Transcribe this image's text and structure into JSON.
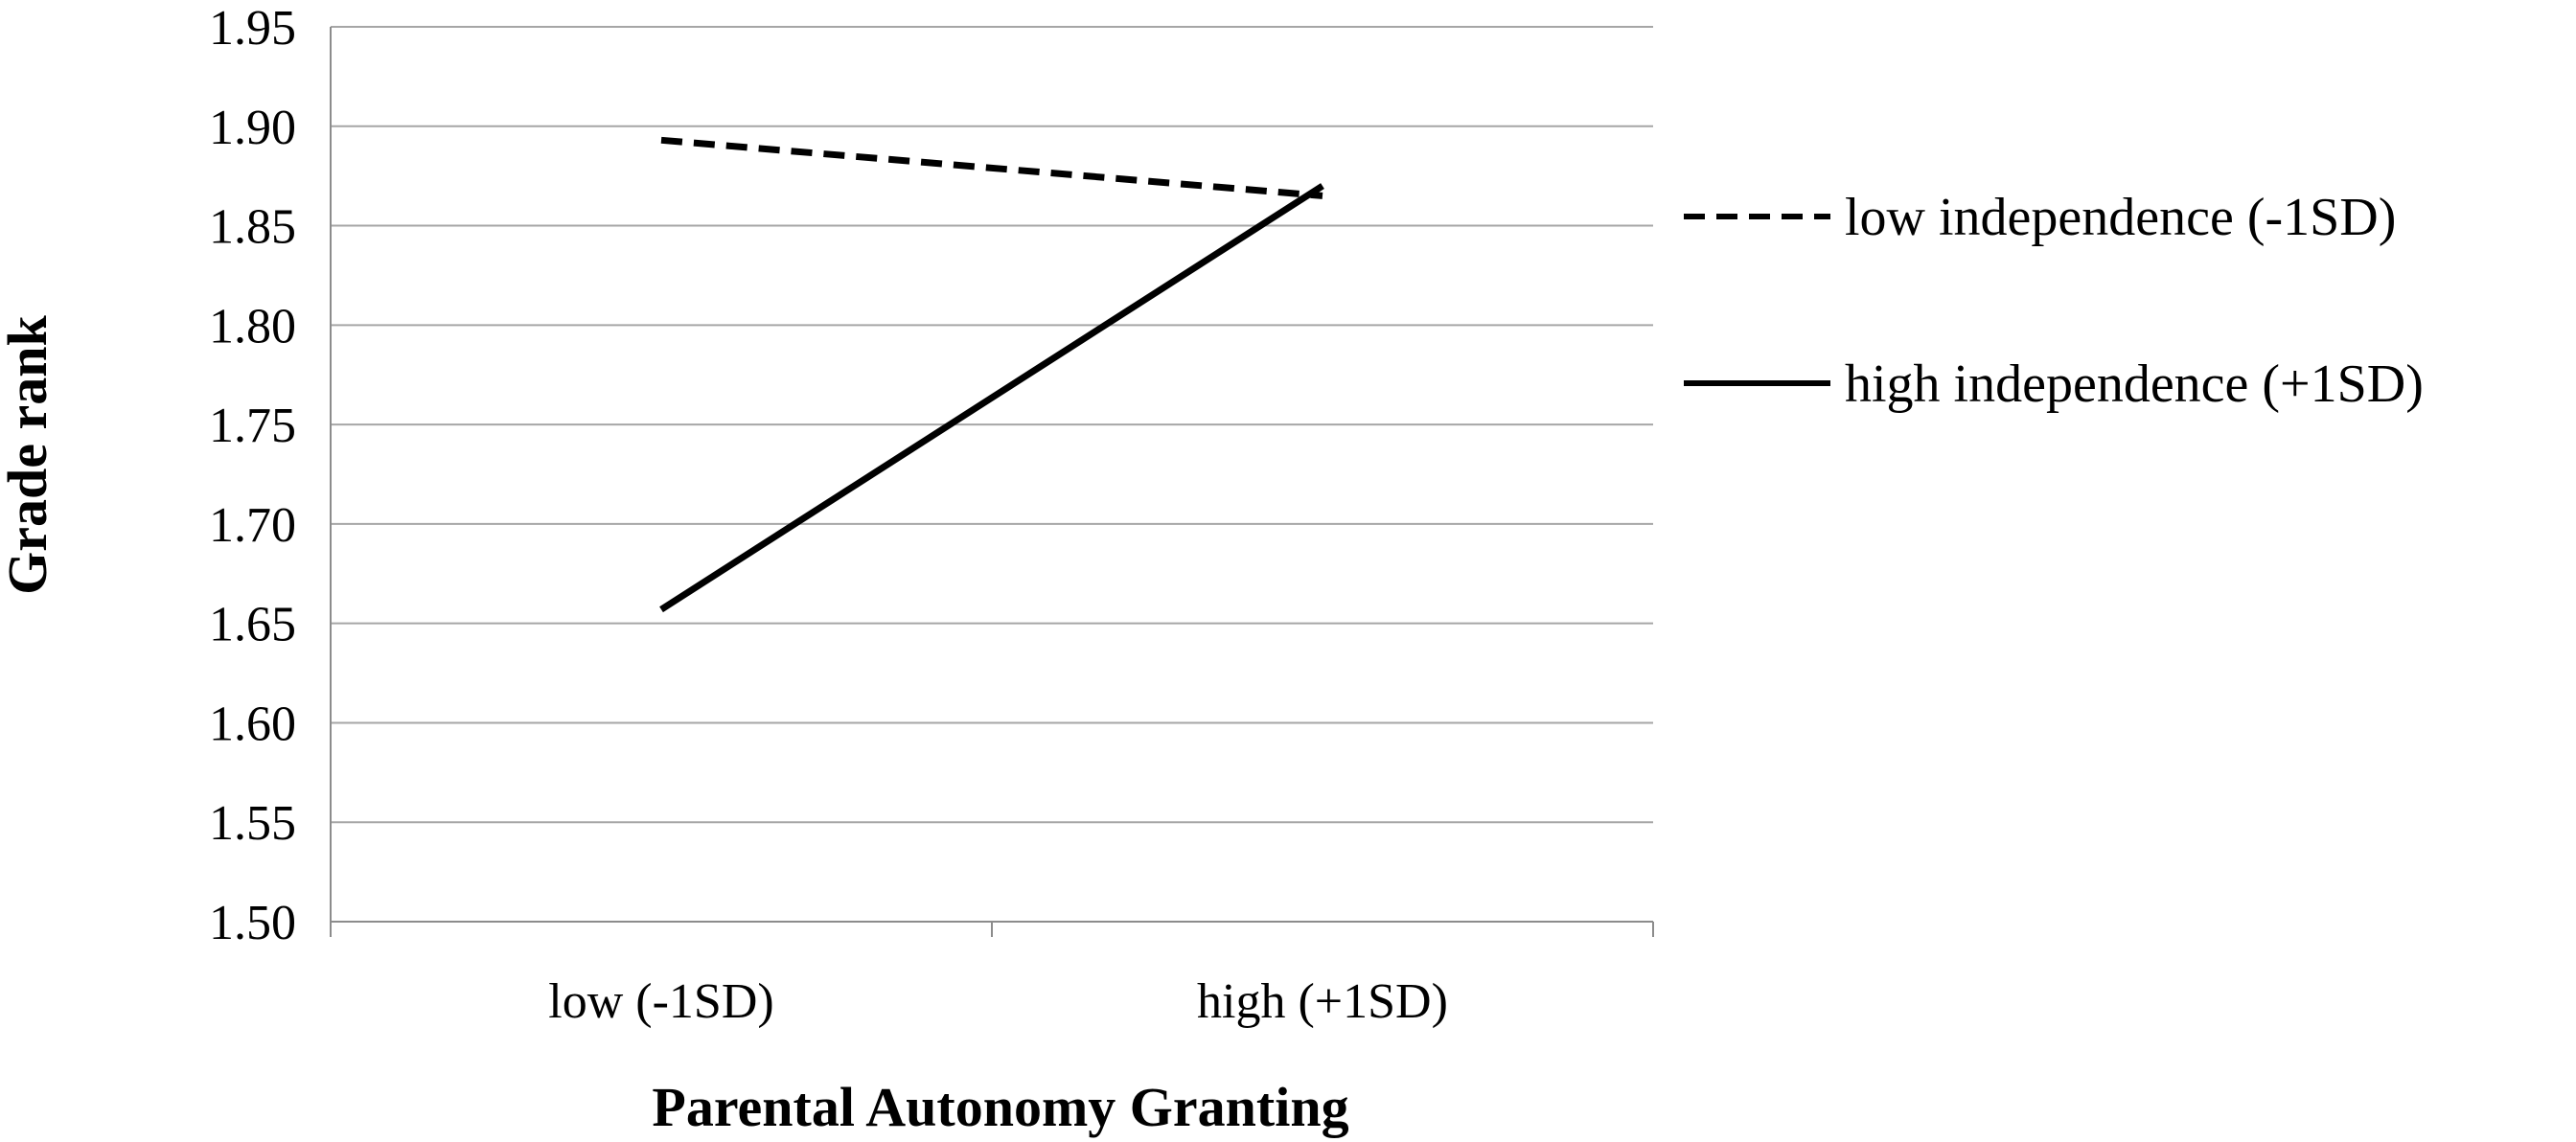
{
  "chart_data": {
    "type": "line",
    "title": "",
    "xlabel": "Parental Autonomy Granting",
    "ylabel": "Grade rank",
    "categories": [
      "low (-1SD)",
      "high (+1SD)"
    ],
    "ylim": [
      1.5,
      1.95
    ],
    "yticks": [
      "1.50",
      "1.55",
      "1.60",
      "1.65",
      "1.70",
      "1.75",
      "1.80",
      "1.85",
      "1.90",
      "1.95"
    ],
    "grid": true,
    "legend_position": "right",
    "series": [
      {
        "name": "low independence (-1SD)",
        "values": [
          1.893,
          1.865
        ],
        "style": "dashed",
        "color": "#000000"
      },
      {
        "name": "high independence (+1SD)",
        "values": [
          1.657,
          1.87
        ],
        "style": "solid",
        "color": "#000000"
      }
    ]
  }
}
